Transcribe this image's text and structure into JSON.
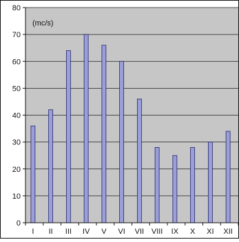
{
  "chart_data": {
    "type": "bar",
    "title": "",
    "xlabel": "",
    "ylabel": "",
    "unit_label": "(mc/s)",
    "categories": [
      "I",
      "II",
      "III",
      "IV",
      "V",
      "VI",
      "VII",
      "VIII",
      "IX",
      "X",
      "XI",
      "XII"
    ],
    "values": [
      36,
      42,
      64,
      70,
      66,
      60,
      46,
      28,
      25,
      28,
      30,
      34
    ],
    "ylim": [
      0,
      80
    ],
    "yticks": [
      0,
      10,
      20,
      30,
      40,
      50,
      60,
      70,
      80
    ],
    "grid": true,
    "legend": "none",
    "colors": {
      "bar_fill": "#9a9fd8",
      "bar_stroke": "#23236b",
      "plot_bg": "#c6c6c6",
      "grid": "#1e1e1e",
      "frame": "#111111"
    }
  }
}
